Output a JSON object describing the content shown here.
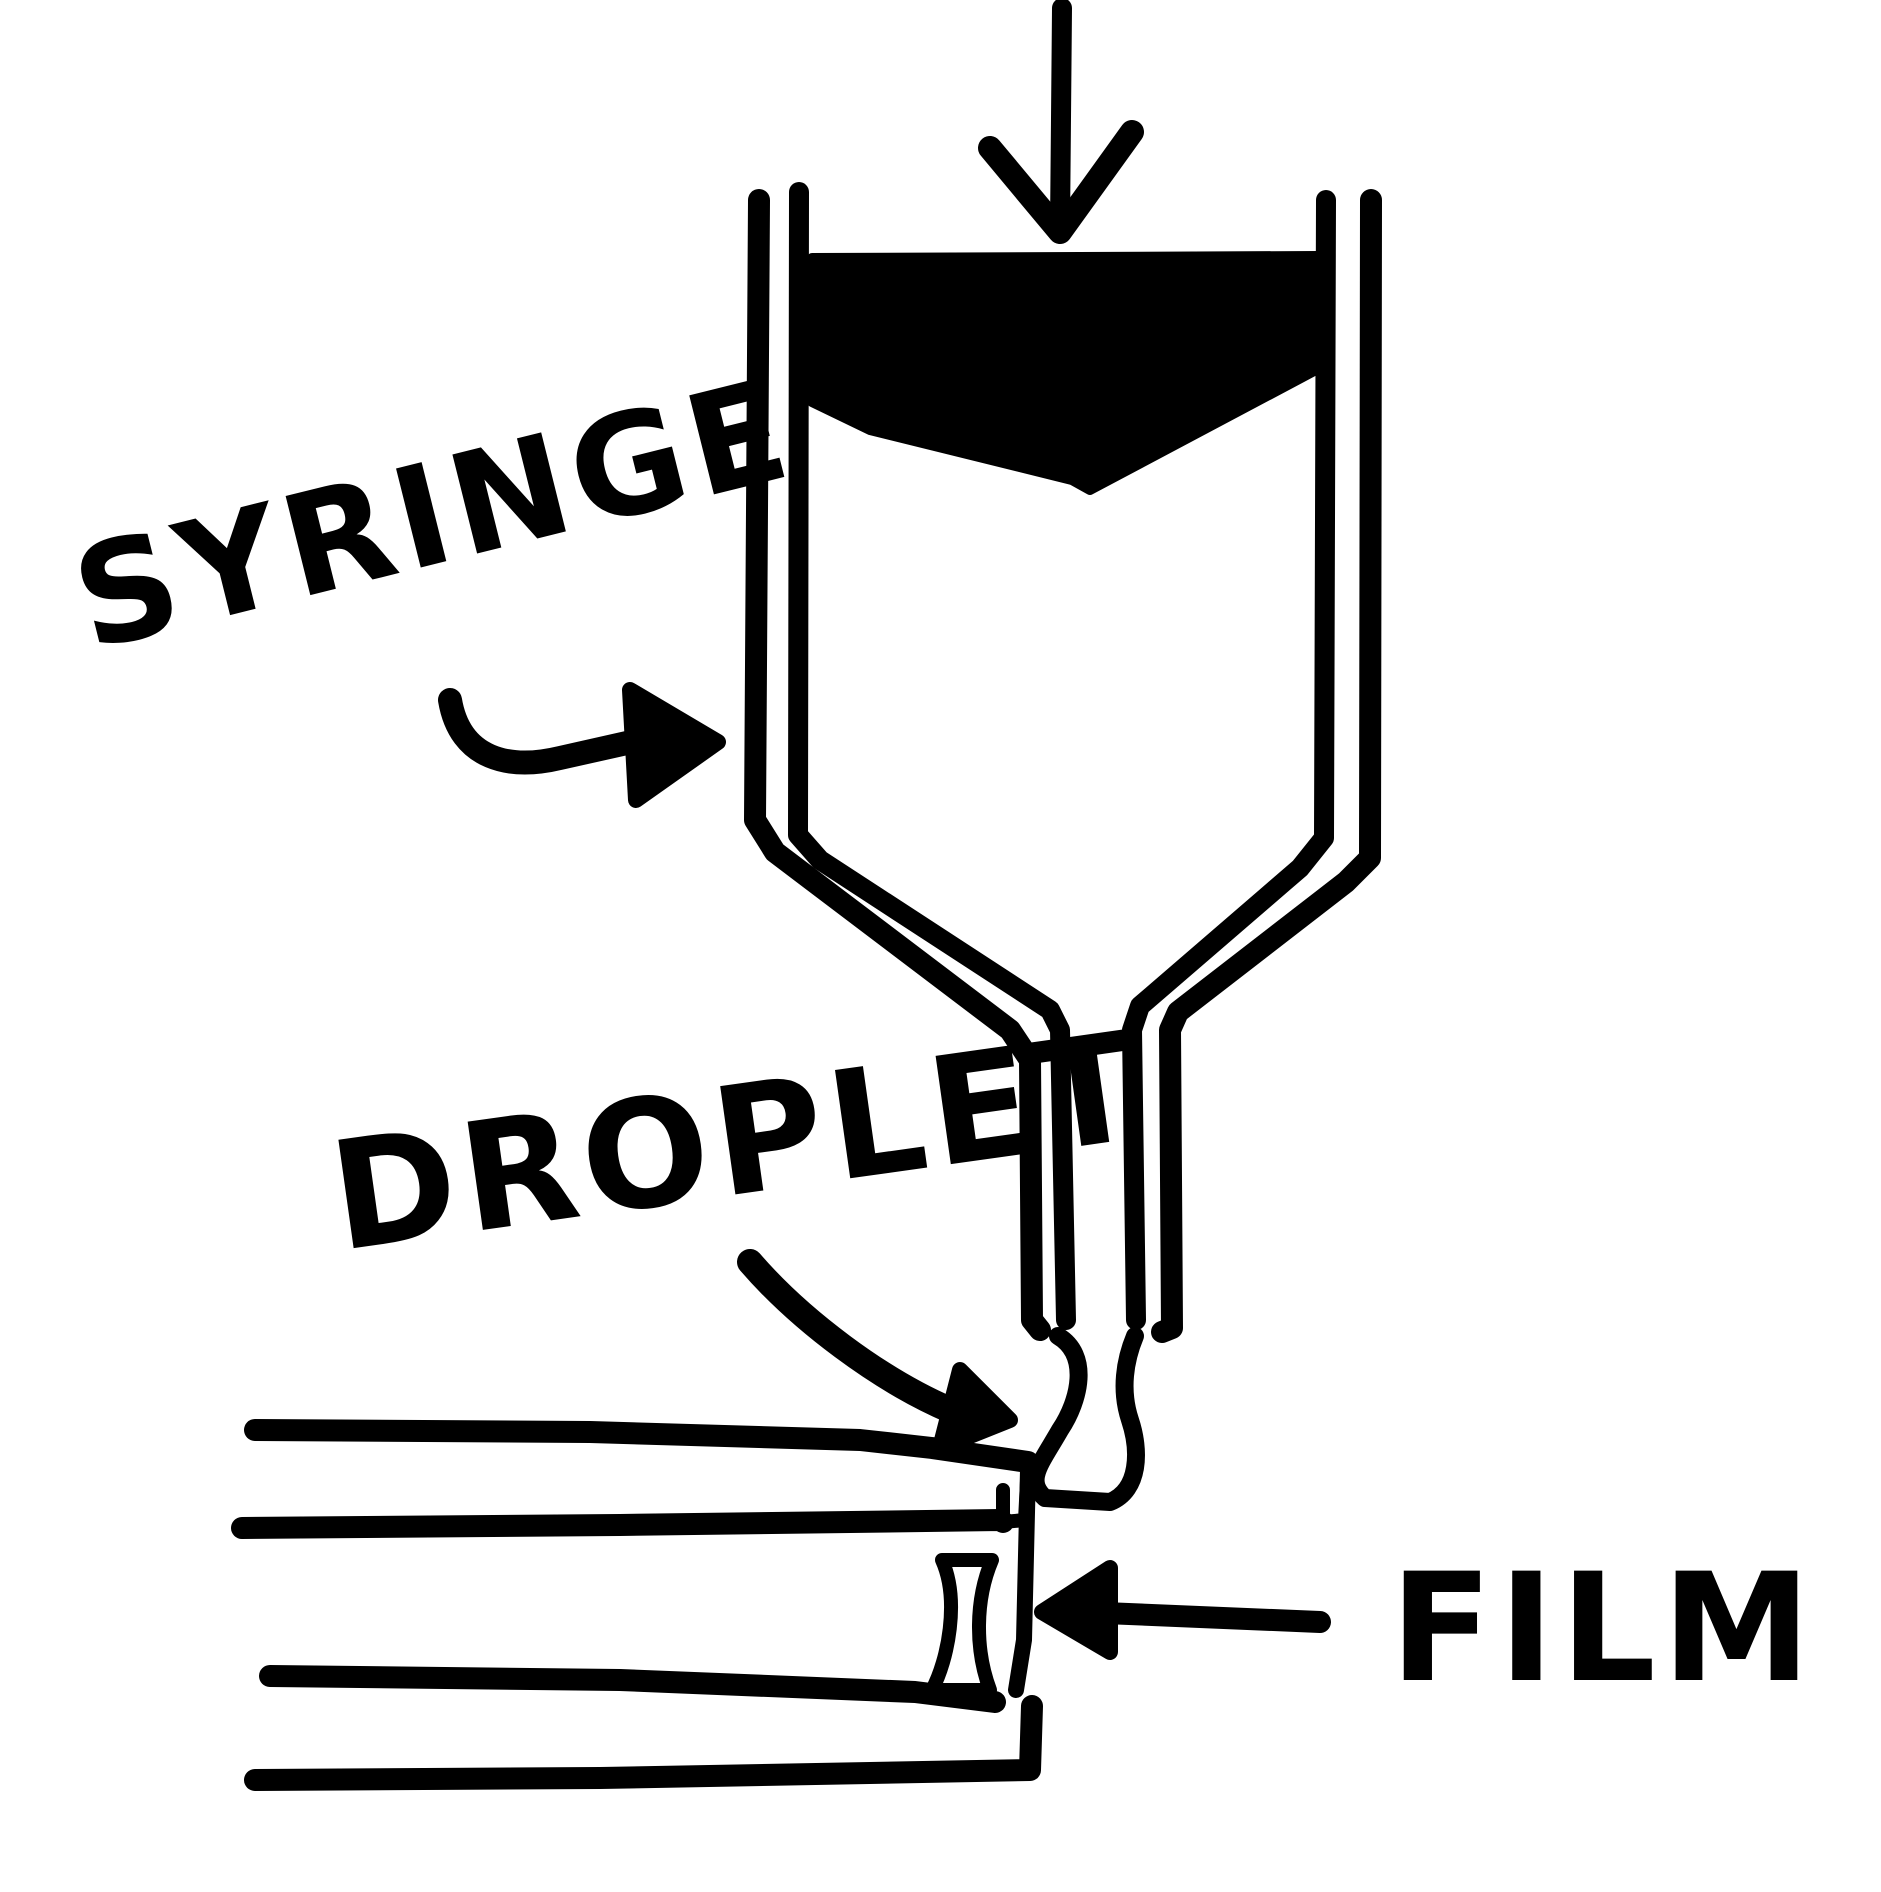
{
  "diagram": {
    "labels": {
      "syringe": "SYRINGE",
      "droplet": "DROPLET",
      "film": "FILM"
    },
    "colors": {
      "ink": "#000000",
      "background": "#ffffff"
    }
  }
}
